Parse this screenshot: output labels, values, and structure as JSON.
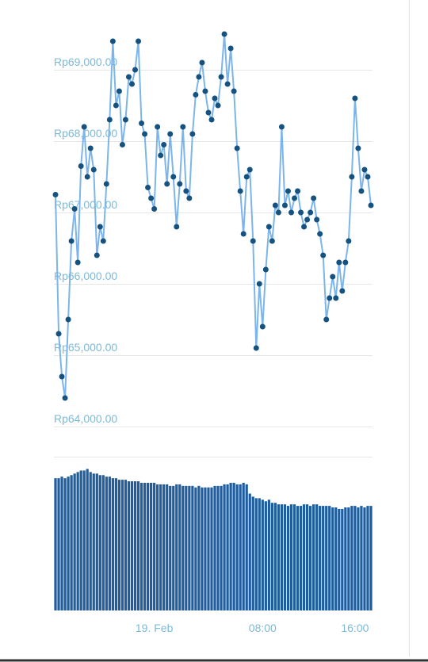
{
  "chart_data": [
    {
      "type": "line",
      "color": "#7cb5ec",
      "marker_color": "#15527f",
      "ylim": [
        64000,
        69600
      ],
      "yticks": [
        {
          "value": 64000,
          "label": "Rp64,000.00"
        },
        {
          "value": 65000,
          "label": "Rp65,000.00"
        },
        {
          "value": 66000,
          "label": "Rp66,000.00"
        },
        {
          "value": 67000,
          "label": "Rp67,000.00"
        },
        {
          "value": 68000,
          "label": "Rp68,000.00"
        },
        {
          "value": 69000,
          "label": "Rp69,000.00"
        }
      ],
      "grid": true,
      "values": [
        67250,
        65300,
        64700,
        64400,
        65500,
        66600,
        67050,
        66300,
        67650,
        68200,
        67500,
        67900,
        67600,
        66400,
        66800,
        66600,
        67400,
        68300,
        69400,
        68500,
        68700,
        67950,
        68300,
        68900,
        68800,
        69000,
        69400,
        68250,
        68100,
        67350,
        67200,
        67050,
        68200,
        67800,
        67950,
        67400,
        68100,
        67500,
        66800,
        67400,
        68200,
        67300,
        67200,
        68100,
        68650,
        68900,
        69100,
        68700,
        68400,
        68300,
        68600,
        68500,
        68900,
        69500,
        68800,
        69300,
        68700,
        67900,
        67300,
        66700,
        67500,
        67600,
        66600,
        65100,
        66000,
        65400,
        66200,
        66800,
        66600,
        67100,
        67000,
        68200,
        67100,
        67300,
        67000,
        67200,
        67300,
        67000,
        66800,
        66900,
        67000,
        67200,
        66900,
        66700,
        66400,
        65500,
        65800,
        66100,
        65800,
        66300,
        65900,
        66300,
        66600,
        67500,
        68600,
        67900,
        67300,
        67600,
        67500,
        67100
      ]
    },
    {
      "type": "bar",
      "color": "#1f5d9c",
      "ylim": [
        0,
        100
      ],
      "categories": [
        null,
        null,
        null,
        null,
        null,
        null,
        null,
        null,
        null,
        null,
        null,
        null,
        null,
        null,
        null,
        null,
        null,
        null,
        null,
        null,
        null,
        null,
        null,
        null,
        null,
        null,
        null,
        null,
        null,
        null,
        null,
        "19. Feb",
        null,
        null,
        null,
        null,
        null,
        null,
        null,
        null,
        null,
        null,
        null,
        null,
        null,
        null,
        null,
        null,
        null,
        null,
        null,
        null,
        null,
        null,
        null,
        null,
        null,
        null,
        null,
        null,
        null,
        null,
        null,
        null,
        null,
        "08:00",
        null,
        null,
        null,
        null,
        null,
        null,
        null,
        null,
        null,
        null,
        null,
        null,
        null,
        null,
        null,
        null,
        null,
        null,
        null,
        null,
        null,
        null,
        null,
        null,
        null,
        null,
        null,
        null,
        "16:00",
        null,
        null,
        null,
        null,
        null
      ],
      "values": [
        86,
        86,
        87,
        86,
        87,
        88,
        89,
        90,
        91,
        91,
        92,
        90,
        89,
        89,
        88,
        88,
        87,
        87,
        86,
        86,
        85,
        85,
        85,
        84,
        84,
        84,
        84,
        83,
        83,
        83,
        83,
        83,
        82,
        82,
        82,
        82,
        81,
        81,
        82,
        82,
        81,
        81,
        81,
        81,
        80,
        81,
        80,
        80,
        80,
        80,
        81,
        81,
        81,
        82,
        82,
        83,
        83,
        82,
        82,
        83,
        82,
        76,
        74,
        73,
        73,
        72,
        71,
        72,
        70,
        70,
        69,
        69,
        69,
        68,
        69,
        69,
        68,
        68,
        69,
        69,
        68,
        69,
        69,
        68,
        68,
        68,
        68,
        67,
        67,
        66,
        66,
        67,
        67,
        68,
        68,
        67,
        68,
        67,
        68,
        68
      ]
    }
  ]
}
